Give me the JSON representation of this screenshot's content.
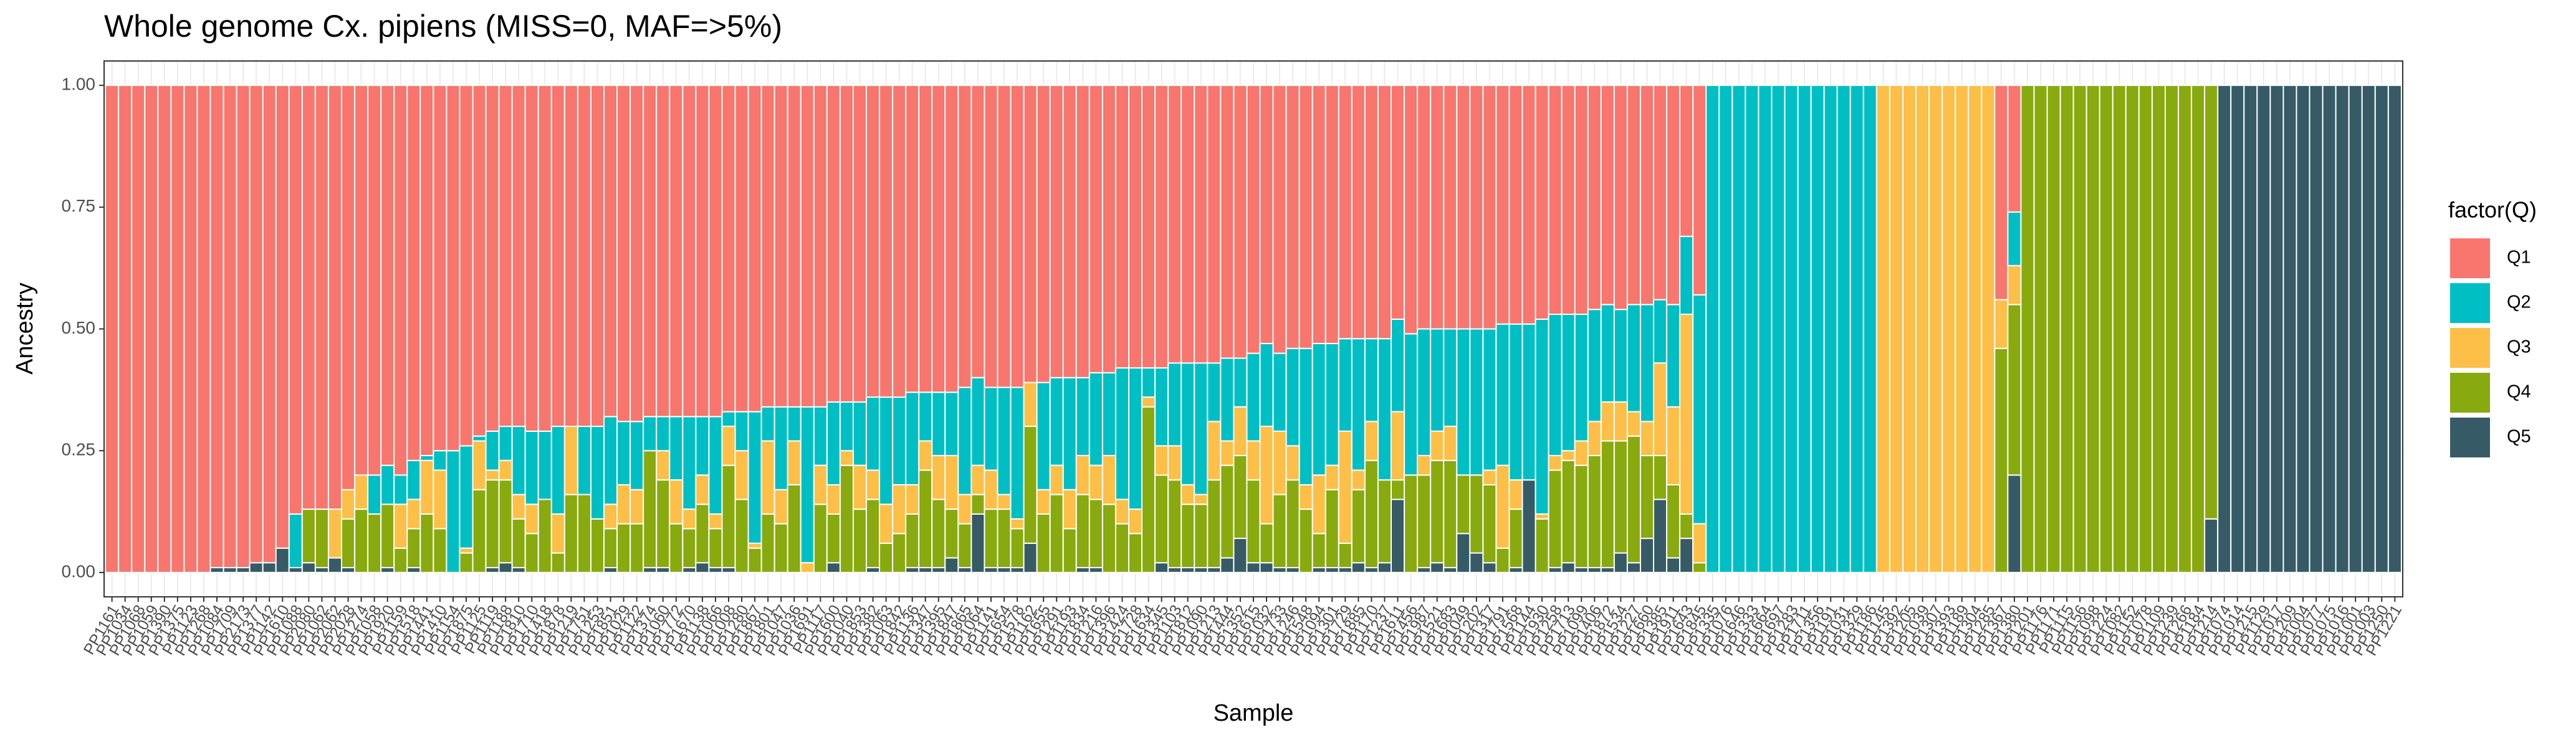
{
  "chart_data": {
    "type": "stacked_bar",
    "title": "Whole genome Cx. pipiens (MISS=0, MAF=>5%)",
    "x_label": "Sample",
    "y_label": "Ancestry",
    "legend_title": "factor(Q)",
    "legend_position": "right",
    "grid": true,
    "ylim": [
      -0.05,
      1.05
    ],
    "yticks": [
      {
        "value": 0,
        "label": "0.00"
      },
      {
        "value": 0.25,
        "label": "0.25"
      },
      {
        "value": 0.5,
        "label": "0.50"
      },
      {
        "value": 0.75,
        "label": "0.75"
      },
      {
        "value": 1,
        "label": "1.00"
      }
    ],
    "categories": [
      "PP1161",
      "PP1034",
      "PP1068",
      "PP1059",
      "PP1390",
      "PP1375",
      "PP1123",
      "PP1268",
      "PP1084",
      "PP1709",
      "PP2173",
      "PP1377",
      "PP1142",
      "PP1610",
      "PP1088",
      "PP2080",
      "PP1062",
      "PP2062",
      "PP2028",
      "PP1274",
      "PP1058",
      "PP1920",
      "PP1159",
      "PP1518",
      "PP1441",
      "PP1410",
      "PP1154",
      "PP1875",
      "PP1125",
      "PP1119",
      "PP1188",
      "PP1810",
      "PP1710",
      "PP1418",
      "PP1878",
      "PP1219",
      "PP1751",
      "PP1253",
      "PP1851",
      "PP1029",
      "PP1122",
      "PP1374",
      "PP1060",
      "PP1772",
      "PP1670",
      "PP1138",
      "PP1066",
      "PP1008",
      "PP1280",
      "PP1867",
      "PP1801",
      "PP1047",
      "PP1036",
      "PP1691",
      "PP1117",
      "PP1600",
      "PP1040",
      "PP1853",
      "PP1382",
      "PP1063",
      "PP1842",
      "PP1136",
      "PP1347",
      "PP1395",
      "PP1847",
      "PP1865",
      "PP1064",
      "PP1141",
      "PP1654",
      "PP1578",
      "PP1162",
      "PP1655",
      "PP1291",
      "PP1193",
      "PP1834",
      "PP1216",
      "PP1396",
      "PP1424",
      "PP1728",
      "PP1634",
      "PP1345",
      "PP1103",
      "PP1812",
      "PP1090",
      "PP1213",
      "PP1444",
      "PP1352",
      "PP1615",
      "PP1032",
      "PP1733",
      "PP1246",
      "PP1548",
      "PP1094",
      "PP1301",
      "PP1729",
      "PP1885",
      "PP1170",
      "PP1237",
      "PP1611",
      "PP1456",
      "PP1987",
      "PP1521",
      "PP1683",
      "PP1049",
      "PP1202",
      "PP1317",
      "PP1791",
      "PP1568",
      "PP1144",
      "PP1930",
      "PP1258",
      "PP1713",
      "PP1099",
      "PP1406",
      "PP1872",
      "PP1534",
      "PP1227",
      "PP1660",
      "PP1385",
      "PP1911",
      "PP1643",
      "PP1845",
      "PP1335",
      "PP1076",
      "PP1646",
      "PP1333",
      "PP1664",
      "PP1697",
      "PP1283",
      "PP1711",
      "PP1356",
      "PP1191",
      "PP1031",
      "PP1329",
      "PP1186",
      "PP1145",
      "PP1392",
      "PP1205",
      "PP1039",
      "PP1307",
      "PP1393",
      "PP1189",
      "PP1304",
      "PP1285",
      "PP1367",
      "PP1380",
      "PP1201",
      "PP1176",
      "PP1171",
      "PP1115",
      "PP1156",
      "PP1098",
      "PP1224",
      "PP1082",
      "PP1152",
      "PP1078",
      "PP1109",
      "PP1239",
      "PP1266",
      "PP1184",
      "PP1214",
      "PP1074",
      "PP1014",
      "PP1215",
      "PP1129",
      "PP1017",
      "PP1209",
      "PP1004",
      "PP1077",
      "PP1075",
      "PP1016",
      "PP1001",
      "PP1003",
      "PP1250",
      "PP1221"
    ],
    "series": [
      {
        "name": "Q1",
        "color": "#F8766D",
        "values": [
          1,
          1,
          1,
          1,
          1,
          1,
          1,
          1,
          0.99,
          0.99,
          0.99,
          0.98,
          0.98,
          0.95,
          0.88,
          0.87,
          0.87,
          0.87,
          0.83,
          0.8,
          0.8,
          0.78,
          0.8,
          0.77,
          0.76,
          0.75,
          0.75,
          0.74,
          0.72,
          0.71,
          0.7,
          0.7,
          0.71,
          0.71,
          0.7,
          0.7,
          0.7,
          0.7,
          0.68,
          0.69,
          0.69,
          0.68,
          0.68,
          0.68,
          0.68,
          0.68,
          0.68,
          0.67,
          0.67,
          0.67,
          0.66,
          0.66,
          0.66,
          0.66,
          0.66,
          0.65,
          0.65,
          0.65,
          0.64,
          0.64,
          0.64,
          0.63,
          0.63,
          0.63,
          0.63,
          0.62,
          0.6,
          0.62,
          0.62,
          0.62,
          0.61,
          0.61,
          0.6,
          0.6,
          0.6,
          0.59,
          0.59,
          0.58,
          0.58,
          0.58,
          0.58,
          0.57,
          0.57,
          0.57,
          0.57,
          0.56,
          0.56,
          0.55,
          0.53,
          0.55,
          0.54,
          0.54,
          0.53,
          0.53,
          0.52,
          0.52,
          0.52,
          0.52,
          0.48,
          0.51,
          0.5,
          0.5,
          0.5,
          0.5,
          0.5,
          0.5,
          0.49,
          0.49,
          0.49,
          0.48,
          0.47,
          0.47,
          0.47,
          0.46,
          0.45,
          0.46,
          0.45,
          0.45,
          0.44,
          0.45,
          0.31,
          0.43,
          0,
          0,
          0,
          0,
          0,
          0,
          0,
          0,
          0,
          0,
          0,
          0,
          0,
          0,
          0,
          0,
          0,
          0,
          0,
          0,
          0,
          0,
          0.44,
          0.26,
          0,
          0,
          0,
          0,
          0,
          0,
          0,
          0,
          0,
          0,
          0,
          0,
          0,
          0,
          0,
          0,
          0,
          0,
          0,
          0,
          0,
          0,
          0,
          0,
          0,
          0,
          0,
          0,
          0
        ]
      },
      {
        "name": "Q2",
        "color": "#00BFC4",
        "values": [
          0,
          0,
          0,
          0,
          0,
          0,
          0,
          0,
          0,
          0,
          0,
          0,
          0,
          0,
          0.11,
          0,
          0,
          0,
          0,
          0,
          0.08,
          0.08,
          0.06,
          0.08,
          0.01,
          0.04,
          0.25,
          0.21,
          0.01,
          0.08,
          0.07,
          0.14,
          0.15,
          0.14,
          0.18,
          0,
          0.14,
          0.19,
          0.18,
          0.13,
          0.14,
          0.07,
          0.07,
          0.13,
          0.19,
          0.12,
          0.2,
          0.03,
          0.08,
          0.27,
          0.07,
          0.17,
          0.07,
          0.32,
          0.12,
          0.17,
          0.1,
          0.13,
          0.15,
          0.22,
          0.18,
          0.19,
          0.1,
          0.13,
          0.13,
          0.22,
          0.18,
          0.17,
          0.22,
          0.27,
          0,
          0.22,
          0.18,
          0.23,
          0.16,
          0.19,
          0.17,
          0.27,
          0.29,
          0.06,
          0.16,
          0.17,
          0.25,
          0.27,
          0.12,
          0.17,
          0.1,
          0.18,
          0.17,
          0.16,
          0.2,
          0.28,
          0.27,
          0.25,
          0.19,
          0.27,
          0.17,
          0.29,
          0.19,
          0.29,
          0.26,
          0.21,
          0.2,
          0.3,
          0.3,
          0.29,
          0.29,
          0.32,
          0.32,
          0.4,
          0.29,
          0.28,
          0.26,
          0.23,
          0.2,
          0.19,
          0.22,
          0.24,
          0.13,
          0.21,
          0.16,
          0.47,
          1,
          1,
          1,
          1,
          1,
          1,
          1,
          1,
          1,
          1,
          1,
          1,
          1,
          0,
          0,
          0,
          0,
          0,
          0,
          0,
          0,
          0,
          0,
          0.11,
          0,
          0,
          0,
          0,
          0,
          0,
          0,
          0,
          0,
          0,
          0,
          0,
          0,
          0,
          0,
          0,
          0,
          0,
          0,
          0,
          0,
          0,
          0,
          0,
          0,
          0,
          0,
          0,
          0
        ]
      },
      {
        "name": "Q3",
        "color": "#FDBF47",
        "values": [
          0,
          0,
          0,
          0,
          0,
          0,
          0,
          0,
          0,
          0,
          0,
          0,
          0,
          0,
          0,
          0,
          0,
          0.1,
          0.06,
          0.07,
          0,
          0,
          0.09,
          0.06,
          0.11,
          0.12,
          0,
          0.01,
          0.1,
          0.02,
          0.04,
          0.05,
          0.06,
          0,
          0.08,
          0.14,
          0,
          0,
          0.05,
          0.08,
          0.07,
          0,
          0.06,
          0.09,
          0.04,
          0.06,
          0.03,
          0.08,
          0.1,
          0.01,
          0.15,
          0.07,
          0.09,
          0.02,
          0.08,
          0.06,
          0.03,
          0.09,
          0.06,
          0.08,
          0.1,
          0.06,
          0.06,
          0.09,
          0.11,
          0.06,
          0.06,
          0.08,
          0.03,
          0.02,
          0.09,
          0.05,
          0.06,
          0.08,
          0.08,
          0.07,
          0.1,
          0.05,
          0.05,
          0.02,
          0.06,
          0.07,
          0.04,
          0.02,
          0.12,
          0.05,
          0.1,
          0.08,
          0.2,
          0.13,
          0.07,
          0.05,
          0.12,
          0.05,
          0.23,
          0.04,
          0.08,
          0,
          0.14,
          0,
          0.04,
          0.06,
          0.07,
          0,
          0,
          0.03,
          0.17,
          0.06,
          0,
          0.01,
          0.03,
          0.02,
          0.05,
          0.07,
          0.08,
          0.08,
          0.05,
          0.07,
          0.19,
          0.16,
          0.41,
          0.08,
          0,
          0,
          0,
          0,
          0,
          0,
          0,
          0,
          0,
          0,
          0,
          0,
          0,
          1,
          1,
          1,
          1,
          1,
          1,
          1,
          1,
          1,
          0.1,
          0.08,
          0,
          0,
          0,
          0,
          0,
          0,
          0,
          0,
          0,
          0,
          0,
          0,
          0,
          0,
          0,
          0,
          0,
          0,
          0,
          0,
          0,
          0,
          0,
          0,
          0,
          0,
          0,
          0,
          0
        ]
      },
      {
        "name": "Q4",
        "color": "#88AA0E",
        "values": [
          0,
          0,
          0,
          0,
          0,
          0,
          0,
          0,
          0,
          0,
          0,
          0,
          0,
          0,
          0,
          0.11,
          0.12,
          0,
          0.1,
          0.13,
          0.12,
          0.13,
          0.05,
          0.08,
          0.12,
          0.09,
          0,
          0.04,
          0.17,
          0.18,
          0.17,
          0.1,
          0.08,
          0.15,
          0.04,
          0.16,
          0.16,
          0.11,
          0.08,
          0.1,
          0.1,
          0.24,
          0.18,
          0.1,
          0.08,
          0.12,
          0.08,
          0.21,
          0.15,
          0.05,
          0.12,
          0.1,
          0.18,
          0,
          0.14,
          0.1,
          0.22,
          0.13,
          0.14,
          0.06,
          0.08,
          0.11,
          0.2,
          0.14,
          0.1,
          0.09,
          0.04,
          0.12,
          0.12,
          0.08,
          0.24,
          0.12,
          0.16,
          0.09,
          0.15,
          0.14,
          0.14,
          0.1,
          0.08,
          0.34,
          0.18,
          0.18,
          0.13,
          0.13,
          0.18,
          0.19,
          0.17,
          0.17,
          0.08,
          0.15,
          0.18,
          0.13,
          0.07,
          0.16,
          0.05,
          0.15,
          0.22,
          0.17,
          0.04,
          0.2,
          0.19,
          0.21,
          0.22,
          0.12,
          0.16,
          0.16,
          0.05,
          0.12,
          0,
          0.11,
          0.2,
          0.21,
          0.21,
          0.23,
          0.26,
          0.23,
          0.26,
          0.17,
          0.09,
          0.15,
          0.05,
          0.02,
          0,
          0,
          0,
          0,
          0,
          0,
          0,
          0,
          0,
          0,
          0,
          0,
          0,
          0,
          0,
          0,
          0,
          0,
          0,
          0,
          0,
          0,
          0.46,
          0.35,
          1,
          1,
          1,
          1,
          1,
          1,
          1,
          1,
          1,
          1,
          1,
          1,
          1,
          1,
          0.89,
          0,
          0,
          0,
          0,
          0,
          0,
          0,
          0,
          0,
          0,
          0,
          0,
          0,
          0
        ]
      },
      {
        "name": "Q5",
        "color": "#365B66",
        "values": [
          0,
          0,
          0,
          0,
          0,
          0,
          0,
          0,
          0.01,
          0.01,
          0.01,
          0.02,
          0.02,
          0.05,
          0.01,
          0.02,
          0.01,
          0.03,
          0.01,
          0,
          0,
          0.01,
          0,
          0.01,
          0,
          0,
          0,
          0,
          0,
          0.01,
          0.02,
          0.01,
          0,
          0,
          0,
          0,
          0,
          0,
          0.01,
          0,
          0,
          0.01,
          0.01,
          0,
          0.01,
          0.02,
          0.01,
          0.01,
          0,
          0,
          0,
          0,
          0,
          0,
          0,
          0.02,
          0,
          0,
          0.01,
          0,
          0,
          0.01,
          0.01,
          0.01,
          0.03,
          0.01,
          0.12,
          0.01,
          0.01,
          0.01,
          0.06,
          0,
          0,
          0,
          0.01,
          0.01,
          0,
          0,
          0,
          0,
          0.02,
          0.01,
          0.01,
          0.01,
          0.01,
          0.03,
          0.07,
          0.02,
          0.02,
          0.01,
          0.01,
          0,
          0.01,
          0.01,
          0.01,
          0.02,
          0.01,
          0.02,
          0.15,
          0,
          0.01,
          0.02,
          0.01,
          0.08,
          0.04,
          0.02,
          0,
          0.01,
          0.19,
          0,
          0.01,
          0.02,
          0.01,
          0.01,
          0.01,
          0.04,
          0.02,
          0.07,
          0.15,
          0.03,
          0.07,
          0,
          0,
          0,
          0,
          0,
          0,
          0,
          0,
          0,
          0,
          0,
          0,
          0,
          0,
          0,
          0,
          0,
          0,
          0,
          0,
          0,
          0,
          0,
          0,
          0.2,
          0,
          0,
          0,
          0,
          0,
          0,
          0,
          0,
          0,
          0,
          0,
          0,
          0,
          0,
          0.11,
          1,
          1,
          1,
          1,
          1,
          1,
          1,
          1,
          1,
          1,
          1,
          1,
          1,
          1
        ]
      }
    ]
  }
}
